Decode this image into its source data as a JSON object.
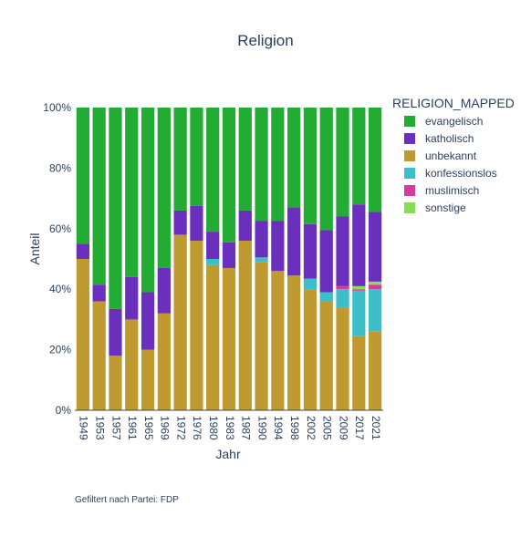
{
  "chart_data": {
    "type": "bar",
    "stacked": true,
    "title": "Religion",
    "xlabel": "Jahr",
    "ylabel": "Anteil",
    "ylim": [
      0,
      1
    ],
    "y_ticks": [
      {
        "value": 0,
        "label": "0%"
      },
      {
        "value": 0.2,
        "label": "20%"
      },
      {
        "value": 0.4,
        "label": "40%"
      },
      {
        "value": 0.6,
        "label": "60%"
      },
      {
        "value": 0.8,
        "label": "80%"
      },
      {
        "value": 1.0,
        "label": "100%"
      }
    ],
    "categories": [
      "1949",
      "1953",
      "1957",
      "1961",
      "1965",
      "1969",
      "1972",
      "1976",
      "1980",
      "1983",
      "1987",
      "1990",
      "1994",
      "1998",
      "2002",
      "2005",
      "2009",
      "2017",
      "2021"
    ],
    "legend_title": "RELIGION_MAPPED",
    "legend_position": "right",
    "grid": false,
    "series": [
      {
        "name": "unbekannt",
        "color": "#bf9a30",
        "values": [
          0.5,
          0.36,
          0.18,
          0.3,
          0.2,
          0.32,
          0.58,
          0.56,
          0.48,
          0.47,
          0.56,
          0.49,
          0.46,
          0.445,
          0.4,
          0.36,
          0.34,
          0.245,
          0.26
        ]
      },
      {
        "name": "konfessionslos",
        "color": "#3dbfc9",
        "values": [
          0,
          0,
          0,
          0,
          0,
          0,
          0,
          0,
          0.02,
          0,
          0,
          0.015,
          0,
          0,
          0.035,
          0.03,
          0.06,
          0.15,
          0.14
        ]
      },
      {
        "name": "muslimisch",
        "color": "#d43d9e",
        "values": [
          0,
          0,
          0,
          0,
          0,
          0,
          0,
          0,
          0,
          0,
          0,
          0,
          0,
          0,
          0,
          0,
          0.01,
          0.005,
          0.015
        ]
      },
      {
        "name": "sonstige",
        "color": "#88dd55",
        "values": [
          0,
          0,
          0,
          0,
          0,
          0,
          0,
          0,
          0,
          0,
          0,
          0,
          0,
          0,
          0,
          0,
          0,
          0.01,
          0.01
        ]
      },
      {
        "name": "katholisch",
        "color": "#6a2fbc",
        "values": [
          0.05,
          0.055,
          0.155,
          0.14,
          0.19,
          0.15,
          0.08,
          0.115,
          0.09,
          0.085,
          0.1,
          0.12,
          0.165,
          0.225,
          0.18,
          0.205,
          0.23,
          0.27,
          0.23
        ]
      },
      {
        "name": "evangelisch",
        "color": "#22ac33",
        "values": [
          0.45,
          0.585,
          0.665,
          0.56,
          0.61,
          0.53,
          0.34,
          0.325,
          0.41,
          0.445,
          0.34,
          0.375,
          0.375,
          0.33,
          0.385,
          0.405,
          0.36,
          0.32,
          0.345
        ]
      }
    ],
    "legend_order": [
      "evangelisch",
      "katholisch",
      "unbekannt",
      "konfessionslos",
      "muslimisch",
      "sonstige"
    ]
  },
  "footnote": "Gefiltert nach Partei: FDP"
}
